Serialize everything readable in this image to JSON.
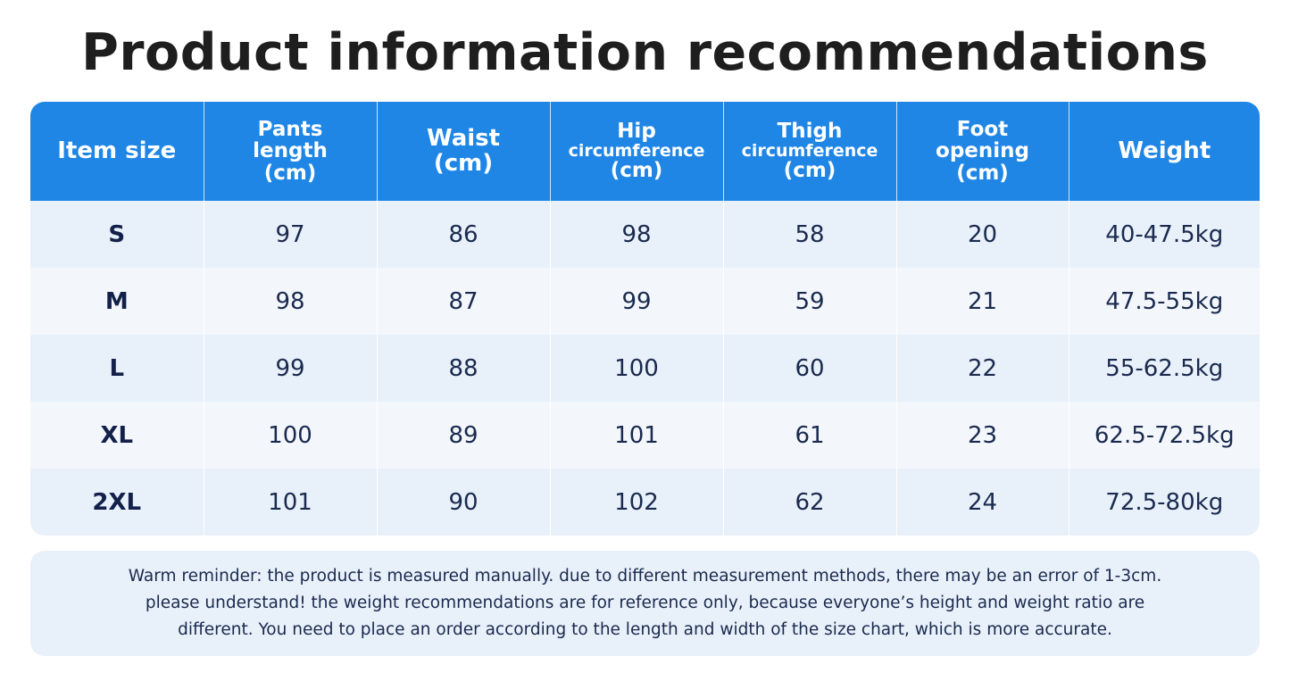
{
  "title": "Product information recommendations",
  "table": {
    "headers": [
      {
        "lines": [
          {
            "text": "Item size",
            "size": "big"
          }
        ]
      },
      {
        "lines": [
          {
            "text": "Pants",
            "size": "mid"
          },
          {
            "text": "length",
            "size": "mid"
          },
          {
            "text": "(cm)",
            "size": "mid"
          }
        ]
      },
      {
        "lines": [
          {
            "text": "Waist",
            "size": "big"
          },
          {
            "text": "(cm)",
            "size": "big"
          }
        ]
      },
      {
        "lines": [
          {
            "text": "Hip",
            "size": "mid"
          },
          {
            "text": "circumference",
            "size": "small"
          },
          {
            "text": "(cm)",
            "size": "mid"
          }
        ]
      },
      {
        "lines": [
          {
            "text": "Thigh",
            "size": "mid"
          },
          {
            "text": "circumference",
            "size": "small"
          },
          {
            "text": "(cm)",
            "size": "mid"
          }
        ]
      },
      {
        "lines": [
          {
            "text": "Foot",
            "size": "mid"
          },
          {
            "text": "opening",
            "size": "mid"
          },
          {
            "text": "(cm)",
            "size": "mid"
          }
        ]
      },
      {
        "lines": [
          {
            "text": "Weight",
            "size": "big"
          }
        ]
      }
    ],
    "rows": [
      [
        "S",
        "97",
        "86",
        "98",
        "58",
        "20",
        "40-47.5kg"
      ],
      [
        "M",
        "98",
        "87",
        "99",
        "59",
        "21",
        "47.5-55kg"
      ],
      [
        "L",
        "99",
        "88",
        "100",
        "60",
        "22",
        "55-62.5kg"
      ],
      [
        "XL",
        "100",
        "89",
        "101",
        "61",
        "23",
        "62.5-72.5kg"
      ],
      [
        "2XL",
        "101",
        "90",
        "102",
        "62",
        "24",
        "72.5-80kg"
      ]
    ]
  },
  "note": {
    "lines": [
      "Warm reminder: the product is measured manually. due to different measurement methods, there may be an error of 1-3cm.",
      "please understand! the weight recommendations are for reference only, because everyone’s height and weight ratio are",
      "different. You need to place an order according to the length and width of the size chart, which is more accurate."
    ]
  },
  "colors": {
    "header_blue": "#1f86e6",
    "title_text": "#1e1e1e",
    "cell_text": "#1a2a4e"
  }
}
